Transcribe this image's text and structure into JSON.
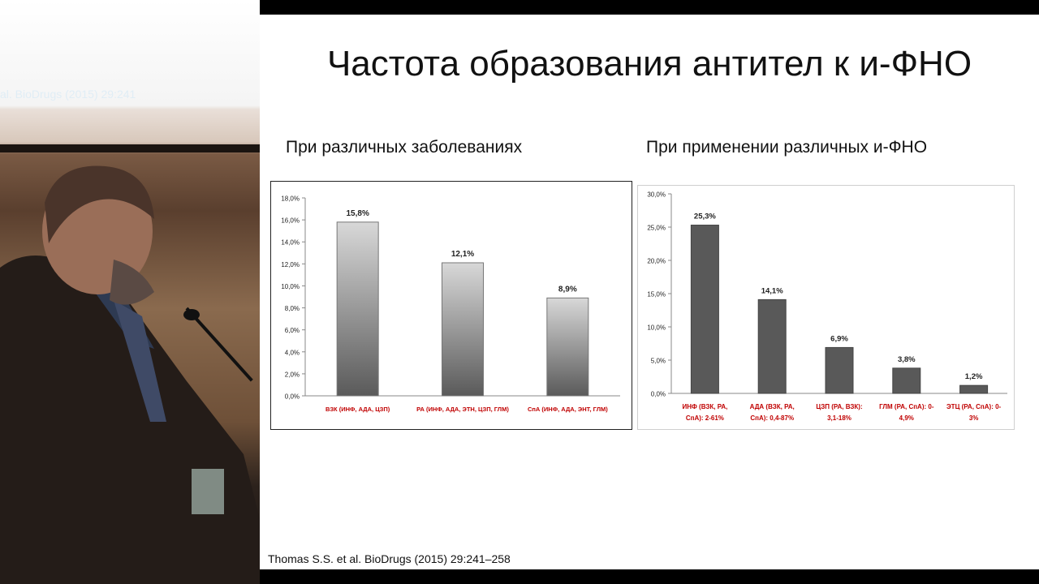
{
  "slide": {
    "title": "Частота образования антител к и-ФНО",
    "left_subtitle": "При различных заболеваниях",
    "right_subtitle": "При применении различных и-ФНО",
    "citation": "Thomas S.S. et al. BioDrugs (2015) 29:241–258"
  },
  "speaker_panel": {
    "faint_text": "al. BioDrugs (2015) 29:241"
  },
  "colors": {
    "bar_dark": "#5a5a5a",
    "bar_light": "#d8d8d8",
    "bar_solid": "#595959",
    "axis_text": "#222222",
    "category_text": "#c00000"
  },
  "chart_data": [
    {
      "type": "bar",
      "title": "",
      "categories": [
        "ВЗК (ИНФ, АДА, ЦЗП)",
        "РА (ИНФ, АДА, ЭТН, ЦЗП, ГЛМ)",
        "СпА (ИНФ, АДА, ЭНТ, ГЛМ)"
      ],
      "values": [
        15.8,
        12.1,
        8.9
      ],
      "value_labels": [
        "15,8%",
        "12,1%",
        "8,9%"
      ],
      "y_ticks": [
        "0,0%",
        "2,0%",
        "4,0%",
        "6,0%",
        "8,0%",
        "10,0%",
        "12,0%",
        "14,0%",
        "16,0%",
        "18,0%"
      ],
      "ylim": [
        0,
        18
      ],
      "grid": false,
      "bar_style": "gradient"
    },
    {
      "type": "bar",
      "title": "",
      "categories": [
        [
          "ИНФ (ВЗК, РА,",
          "СпА): 2-61%"
        ],
        [
          "АДА (ВЗК, РА,",
          "СпА): 0,4-87%"
        ],
        [
          "ЦЗП (РА, ВЗК):",
          "3,1-18%"
        ],
        [
          "ГЛМ (РА, СпА): 0-",
          "4,9%"
        ],
        [
          "ЭТЦ (РА, СпА): 0-",
          "3%"
        ]
      ],
      "values": [
        25.3,
        14.1,
        6.9,
        3.8,
        1.2
      ],
      "value_labels": [
        "25,3%",
        "14,1%",
        "6,9%",
        "3,8%",
        "1,2%"
      ],
      "y_ticks": [
        "0,0%",
        "5,0%",
        "10,0%",
        "15,0%",
        "20,0%",
        "25,0%",
        "30,0%"
      ],
      "ylim": [
        0,
        30
      ],
      "grid": false,
      "bar_style": "solid"
    }
  ]
}
